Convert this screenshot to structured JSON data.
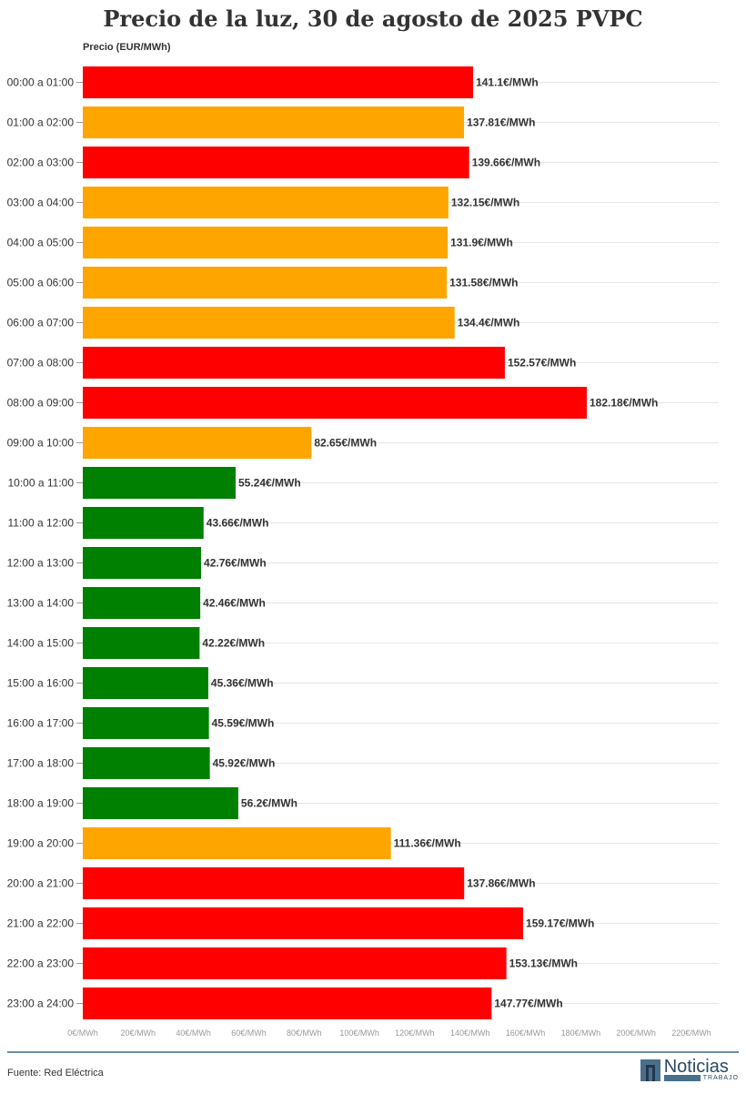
{
  "chart_data": {
    "type": "bar",
    "orientation": "horizontal",
    "title": "Precio de la luz, 30 de agosto de 2025 PVPC",
    "ylabel": "Precio (EUR/MWh)",
    "categories": [
      "00:00 a 01:00",
      "01:00 a 02:00",
      "02:00 a 03:00",
      "03:00 a 04:00",
      "04:00 a 05:00",
      "05:00 a 06:00",
      "06:00 a 07:00",
      "07:00 a 08:00",
      "08:00 a 09:00",
      "09:00 a 10:00",
      "10:00 a 11:00",
      "11:00 a 12:00",
      "12:00 a 13:00",
      "13:00 a 14:00",
      "14:00 a 15:00",
      "15:00 a 16:00",
      "16:00 a 17:00",
      "17:00 a 18:00",
      "18:00 a 19:00",
      "19:00 a 20:00",
      "20:00 a 21:00",
      "21:00 a 22:00",
      "22:00 a 23:00",
      "23:00 a 24:00"
    ],
    "values": [
      141.1,
      137.81,
      139.66,
      132.15,
      131.9,
      131.58,
      134.4,
      152.57,
      182.18,
      82.65,
      55.24,
      43.66,
      42.76,
      42.46,
      42.22,
      45.36,
      45.59,
      45.92,
      56.2,
      111.36,
      137.86,
      159.17,
      153.13,
      147.77
    ],
    "data_labels": [
      "141.1€/MWh",
      "137.81€/MWh",
      "139.66€/MWh",
      "132.15€/MWh",
      "131.9€/MWh",
      "131.58€/MWh",
      "134.4€/MWh",
      "152.57€/MWh",
      "182.18€/MWh",
      "82.65€/MWh",
      "55.24€/MWh",
      "43.66€/MWh",
      "42.76€/MWh",
      "42.46€/MWh",
      "42.22€/MWh",
      "45.36€/MWh",
      "45.59€/MWh",
      "45.92€/MWh",
      "56.2€/MWh",
      "111.36€/MWh",
      "137.86€/MWh",
      "159.17€/MWh",
      "153.13€/MWh",
      "147.77€/MWh"
    ],
    "bar_colors": [
      "#ff0000",
      "#ffa500",
      "#ff0000",
      "#ffa500",
      "#ffa500",
      "#ffa500",
      "#ffa500",
      "#ff0000",
      "#ff0000",
      "#ffa500",
      "#008000",
      "#008000",
      "#008000",
      "#008000",
      "#008000",
      "#008000",
      "#008000",
      "#008000",
      "#008000",
      "#ffa500",
      "#ff0000",
      "#ff0000",
      "#ff0000",
      "#ff0000"
    ],
    "xlim": [
      0,
      220
    ],
    "xticks": [
      0,
      20,
      40,
      60,
      80,
      100,
      120,
      140,
      160,
      180,
      200,
      220
    ],
    "xtick_labels": [
      "0€/MWh",
      "20€/MWh",
      "40€/MWh",
      "60€/MWh",
      "80€/MWh",
      "100€/MWh",
      "120€/MWh",
      "140€/MWh",
      "160€/MWh",
      "180€/MWh",
      "200€/MWh",
      "220€/MWh"
    ],
    "grid": true
  },
  "footer": {
    "source": "Fuente: Red Eléctrica",
    "logo_text": "Noticias",
    "logo_sub": "TRABAJO"
  }
}
